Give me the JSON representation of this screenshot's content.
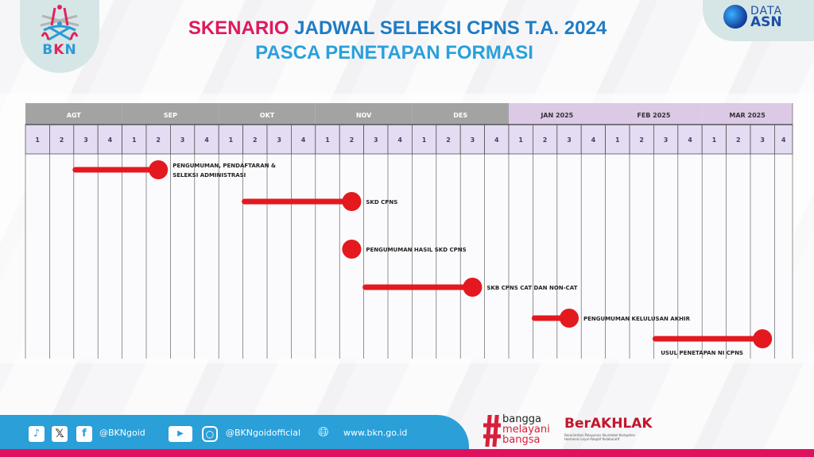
{
  "header": {
    "title_highlight": "SKENARIO",
    "title_rest": "JADWAL SELEKSI CPNS T.A. 2024",
    "subtitle": "PASCA PENETAPAN FORMASI"
  },
  "logos": {
    "left": "BKN",
    "right_top": "DATA",
    "right_bottom": "ASN"
  },
  "colors": {
    "bar": "#e3191f",
    "month_header_2024": "#a3a3a3",
    "month_header_2025": "#dcc9e6",
    "week_row": "#e4dcf3",
    "title_pink": "#e0195c",
    "title_blue": "#1f7cc4",
    "footer_blue": "#2a9fd8",
    "footer_pink": "#e0115f"
  },
  "chart_data": {
    "type": "bar",
    "variant": "gantt",
    "months": [
      "AGT",
      "SEP",
      "OKT",
      "NOV",
      "DES",
      "JAN 2025",
      "FEB 2025",
      "MAR 2025"
    ],
    "weeks_per_month": [
      "1",
      "2",
      "3",
      "4"
    ],
    "tasks": [
      {
        "label_line1": "PENGUMUMAN, PENDAFTARAN &",
        "label_line2": "SELEKSI ADMINISTRASI",
        "start": {
          "month": "AGT",
          "week": 3
        },
        "end": {
          "month": "SEP",
          "week": 2
        }
      },
      {
        "label_line1": "SKD CPNS",
        "label_line2": "",
        "start": {
          "month": "OKT",
          "week": 2
        },
        "end": {
          "month": "NOV",
          "week": 2
        }
      },
      {
        "label_line1": "PENGUMUMAN HASIL SKD CPNS",
        "label_line2": "",
        "start": {
          "month": "NOV",
          "week": 2
        },
        "end": {
          "month": "NOV",
          "week": 2
        }
      },
      {
        "label_line1": "SKB CPNS CAT DAN NON-CAT",
        "label_line2": "",
        "start": {
          "month": "NOV",
          "week": 3
        },
        "end": {
          "month": "DES",
          "week": 3
        }
      },
      {
        "label_line1": "PENGUMUMAN KELULUSAN AKHIR",
        "label_line2": "",
        "start": {
          "month": "JAN 2025",
          "week": 2
        },
        "end": {
          "month": "JAN 2025",
          "week": 3
        }
      },
      {
        "label_line1": "USUL PENETAPAN NI CPNS",
        "label_line2": "",
        "start": {
          "month": "FEB 2025",
          "week": 3
        },
        "end": {
          "month": "MAR 2025",
          "week": 3
        }
      }
    ]
  },
  "footer": {
    "handle1": "@BKNgoid",
    "handle2": "@BKNgoidofficial",
    "website": "www.bkn.go.id",
    "icons": [
      "tiktok-icon",
      "x-icon",
      "facebook-icon",
      "youtube-icon",
      "instagram-icon",
      "globe-icon"
    ],
    "bangga": [
      "bangga",
      "melayani",
      "bangsa"
    ],
    "berakhlak": "BerAKHLAK",
    "berakhlak_sub": "Berorientasi Pelayanan Akuntabel Kompeten Harmonis Loyal Adaptif Kolaboratif"
  }
}
